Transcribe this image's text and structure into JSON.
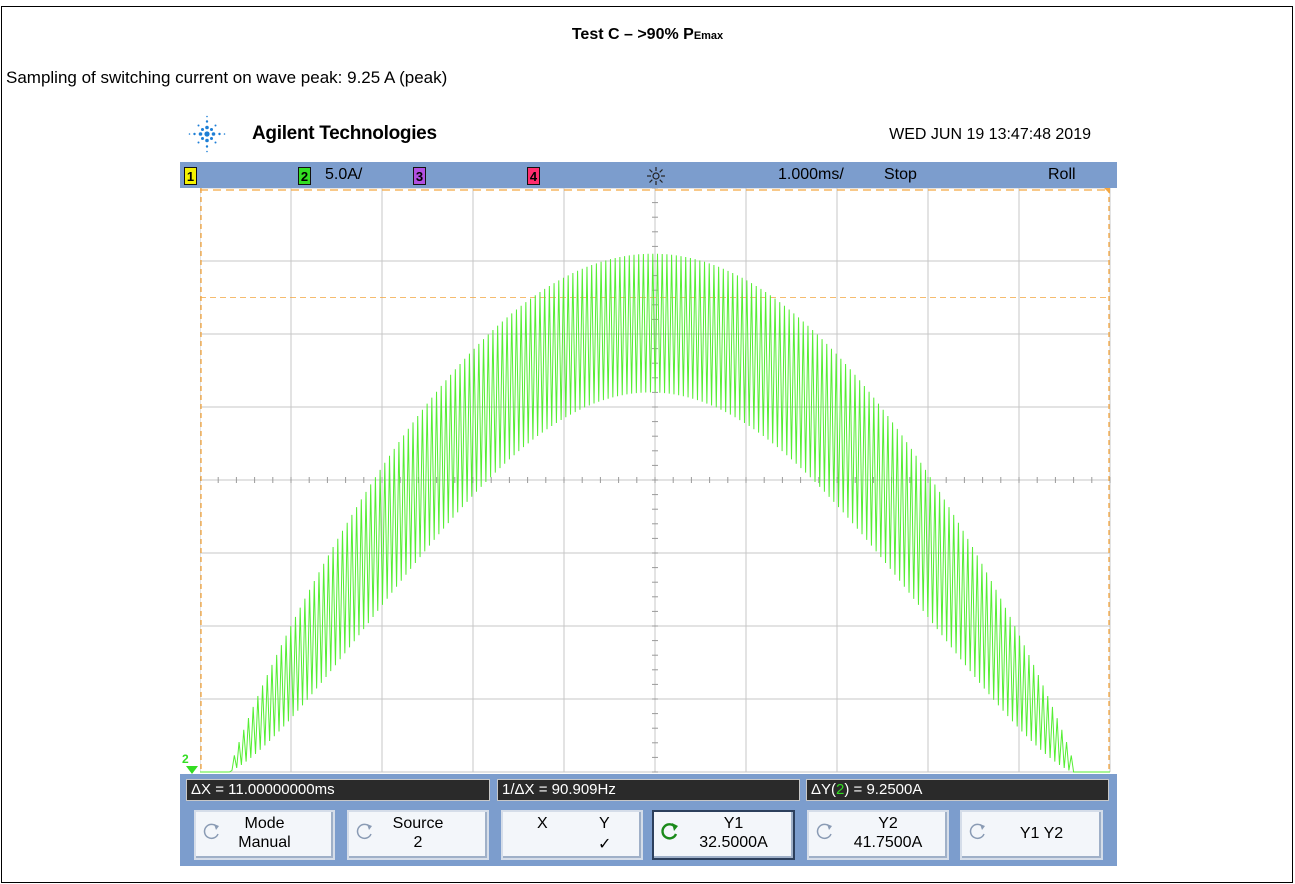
{
  "document": {
    "title": "Test C – >90% P",
    "title_sub": "Emax",
    "subtitle": "Sampling of switching current on wave peak: 9.25 A (peak)"
  },
  "scope": {
    "brand": "Agilent Technologies",
    "timestamp": "WED JUN 19 13:47:48 2019",
    "status_bar": {
      "ch1_label": "1",
      "ch2_label": "2",
      "ch2_scale": "5.0A/",
      "ch3_label": "3",
      "ch4_label": "4",
      "trigger_icon": "sun-trigger-icon",
      "timebase": "1.000ms/",
      "run_state": "Stop",
      "mode": "Roll"
    },
    "ch2_marker": "2",
    "readouts": {
      "delta_x": "ΔX = 11.00000000ms",
      "inv_delta_x": "1/ΔX = 90.909Hz",
      "delta_y_prefix": "ΔY(",
      "delta_y_channel": "2",
      "delta_y_suffix": ") = 9.2500A"
    },
    "softkeys": {
      "mode_label": "Mode",
      "mode_value": "Manual",
      "source_label": "Source",
      "source_value": "2",
      "x_label": "X",
      "y_label": "Y",
      "y_check": "✓",
      "y1_label": "Y1",
      "y1_value": "32.5000A",
      "y2_label": "Y2",
      "y2_value": "41.7500A",
      "y1y2_label": "Y1 Y2"
    },
    "colors": {
      "ch1": "#f5f200",
      "ch2": "#33dd22",
      "ch3": "#b14fe0",
      "ch4": "#ff2d6e",
      "frame": "#7c9dcd",
      "cursor": "#f4a640",
      "trace": "#55ee33"
    }
  },
  "chart_data": {
    "type": "line",
    "x_units": "ms",
    "y_units": "A",
    "volts_per_div": 5.0,
    "time_per_div": 1.0,
    "divisions_x": 10,
    "divisions_y": 8,
    "ylim": [
      0,
      40
    ],
    "xlim": [
      0,
      10
    ],
    "waveform_envelope": {
      "upper_peak_A": 35.5,
      "lower_at_peak_A": 26.0,
      "peak_time_ms": 5.0,
      "start_time_ms": 0.3,
      "end_time_ms": 9.6
    },
    "cursors": {
      "Y1": 32.5,
      "Y2": 41.75,
      "delta_Y": 9.25,
      "delta_X_ms": 11.0,
      "inv_delta_x_hz": 90.909
    },
    "grid": true
  }
}
